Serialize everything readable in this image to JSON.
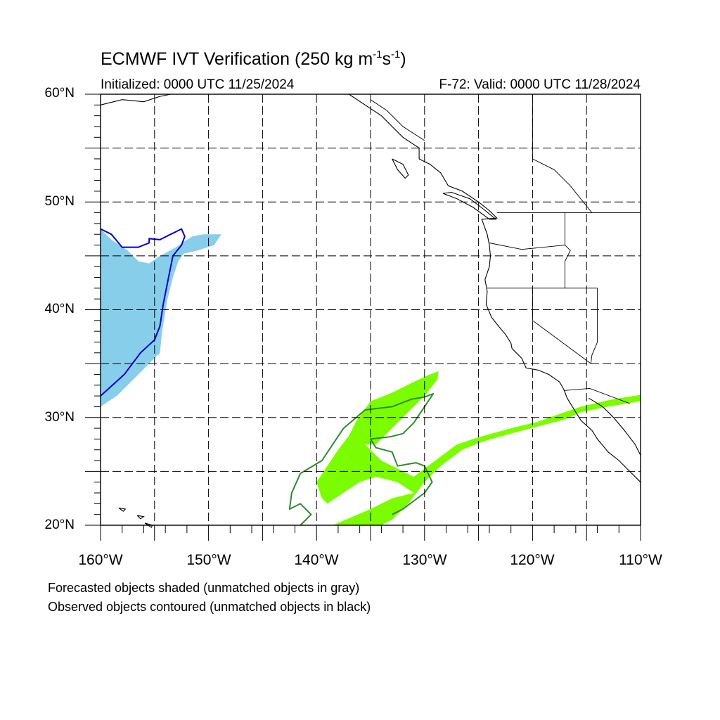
{
  "title": {
    "main": "ECMWF IVT Verification (250 kg m",
    "exp1": "-1",
    "mid": "s",
    "exp2": "-1",
    "end": ")"
  },
  "initialized": "Initialized: 0000 UTC 11/25/2024",
  "valid": "F-72: Valid: 0000 UTC 11/28/2024",
  "map": {
    "lon_range": [
      -160,
      -110
    ],
    "lat_range": [
      20,
      60
    ],
    "grid_interval_deg": 5,
    "grid_style": "dashed",
    "lat_labels": [
      "60°N",
      "50°N",
      "40°N",
      "30°N",
      "20°N"
    ],
    "lon_labels": [
      "160°W",
      "150°W",
      "140°W",
      "130°W",
      "120°W",
      "110°W"
    ],
    "colors": {
      "forecast_object_1": "#87ceeb",
      "observed_object_1": "#0000cd",
      "forecast_object_2": "#7cfc00",
      "observed_object_2": "#2e8b2e",
      "coastline": "#000000"
    },
    "objects": [
      {
        "name": "forecast-object-1",
        "kind": "forecast",
        "style": "shaded",
        "lonlat": [
          [
            -160,
            47.5
          ],
          [
            -159,
            46.5
          ],
          [
            -157.5,
            45.5
          ],
          [
            -156.5,
            44.5
          ],
          [
            -155.5,
            44.3
          ],
          [
            -154.5,
            45
          ],
          [
            -153,
            45.8
          ],
          [
            -152,
            46.5
          ],
          [
            -151.5,
            46.8
          ],
          [
            -150.5,
            47
          ],
          [
            -148.8,
            47
          ],
          [
            -149.5,
            46
          ],
          [
            -151,
            45.5
          ],
          [
            -152.3,
            45.2
          ],
          [
            -152.8,
            44.5
          ],
          [
            -153.3,
            43
          ],
          [
            -153.8,
            41
          ],
          [
            -154.3,
            38
          ],
          [
            -154.5,
            36
          ],
          [
            -155.5,
            35
          ],
          [
            -157,
            33.5
          ],
          [
            -158.5,
            32
          ],
          [
            -160,
            31
          ]
        ]
      },
      {
        "name": "observed-object-1",
        "kind": "observed",
        "style": "contour",
        "lonlat": [
          [
            -160,
            47.5
          ],
          [
            -159,
            47
          ],
          [
            -158,
            45.8
          ],
          [
            -156.5,
            45.8
          ],
          [
            -155.5,
            46.2
          ],
          [
            -155.5,
            46.6
          ],
          [
            -154.5,
            46.5
          ],
          [
            -153.5,
            47
          ],
          [
            -152.5,
            47.5
          ],
          [
            -152.2,
            46.8
          ],
          [
            -152.5,
            46
          ],
          [
            -153.3,
            45
          ],
          [
            -153.5,
            44
          ],
          [
            -153.8,
            42.5
          ],
          [
            -154.2,
            40.5
          ],
          [
            -154.5,
            38.5
          ],
          [
            -155,
            37.2
          ],
          [
            -156.3,
            36
          ],
          [
            -157.8,
            34
          ],
          [
            -160,
            32
          ]
        ]
      },
      {
        "name": "forecast-object-2",
        "kind": "forecast",
        "style": "shaded",
        "lonlat": [
          [
            -139.5,
            22.5
          ],
          [
            -140,
            24
          ],
          [
            -139,
            25.5
          ],
          [
            -138,
            27
          ],
          [
            -137,
            28.3
          ],
          [
            -136.3,
            29.7
          ],
          [
            -135,
            31.5
          ],
          [
            -133,
            32.3
          ],
          [
            -131,
            33.3
          ],
          [
            -129.5,
            34
          ],
          [
            -128.7,
            34.3
          ],
          [
            -128.8,
            33.5
          ],
          [
            -130,
            32
          ],
          [
            -131.5,
            30.5
          ],
          [
            -133,
            29
          ],
          [
            -134.5,
            27.5
          ],
          [
            -135.5,
            27.5
          ],
          [
            -134,
            26
          ],
          [
            -131,
            24.5
          ],
          [
            -129,
            26
          ],
          [
            -127,
            27.5
          ],
          [
            -125.5,
            28
          ],
          [
            -124.5,
            28.3
          ],
          [
            -122,
            29
          ],
          [
            -119.5,
            29.6
          ],
          [
            -117.3,
            30.4
          ],
          [
            -115.5,
            31
          ],
          [
            -113,
            31.6
          ],
          [
            -110,
            32.1
          ],
          [
            -110,
            31.5
          ],
          [
            -113,
            31
          ],
          [
            -115.5,
            30.5
          ],
          [
            -117,
            29.8
          ],
          [
            -119,
            29.3
          ],
          [
            -122,
            28.5
          ],
          [
            -124.5,
            27.8
          ],
          [
            -126.5,
            27
          ],
          [
            -128.5,
            25.5
          ],
          [
            -130,
            24
          ],
          [
            -131.5,
            22
          ],
          [
            -133,
            20.5
          ],
          [
            -134,
            20
          ],
          [
            -138.5,
            20
          ],
          [
            -135,
            21.5
          ],
          [
            -133,
            22.5
          ],
          [
            -131,
            23
          ],
          [
            -132.5,
            24
          ],
          [
            -134.5,
            24.5
          ],
          [
            -136,
            24
          ],
          [
            -137.5,
            23
          ],
          [
            -139,
            22
          ]
        ]
      },
      {
        "name": "observed-object-2",
        "kind": "observed",
        "style": "contour",
        "lonlat": [
          [
            -141.5,
            20
          ],
          [
            -140.5,
            21
          ],
          [
            -141.5,
            22
          ],
          [
            -142.5,
            21.5
          ],
          [
            -142.3,
            23
          ],
          [
            -141.5,
            24.8
          ],
          [
            -139.5,
            26
          ],
          [
            -137.5,
            29
          ],
          [
            -135.5,
            30.7
          ],
          [
            -133,
            31
          ],
          [
            -131.2,
            31.7
          ],
          [
            -130,
            31.9
          ],
          [
            -129.2,
            32.2
          ],
          [
            -130,
            31
          ],
          [
            -131,
            29.5
          ],
          [
            -132,
            28.5
          ],
          [
            -133.2,
            28.2
          ],
          [
            -135,
            28
          ],
          [
            -134.5,
            27.2
          ],
          [
            -133,
            26.8
          ],
          [
            -132.5,
            25.5
          ],
          [
            -130.8,
            25.8
          ],
          [
            -130,
            25.5
          ],
          [
            -129.3,
            24
          ],
          [
            -130,
            23
          ],
          [
            -132,
            21.5
          ],
          [
            -133,
            21
          ]
        ]
      }
    ],
    "coastlines": [
      {
        "name": "north-america-west-coast",
        "lonlat": [
          [
            -137,
            60
          ],
          [
            -135.5,
            59
          ],
          [
            -134,
            58
          ],
          [
            -133,
            57
          ],
          [
            -132,
            56
          ],
          [
            -130.5,
            55
          ],
          [
            -130.5,
            54
          ],
          [
            -129.5,
            53.5
          ],
          [
            -128.5,
            52.7
          ],
          [
            -127.8,
            51.5
          ],
          [
            -126.5,
            51
          ],
          [
            -125,
            50
          ],
          [
            -124,
            49.2
          ],
          [
            -123.3,
            48.5
          ],
          [
            -124.7,
            48.4
          ],
          [
            -124.2,
            47
          ],
          [
            -124,
            46
          ],
          [
            -123.9,
            45
          ],
          [
            -124,
            44
          ],
          [
            -124.4,
            42.8
          ],
          [
            -124.2,
            41.7
          ],
          [
            -124.3,
            40.5
          ],
          [
            -123.8,
            39.3
          ],
          [
            -123,
            38.3
          ],
          [
            -122.5,
            37.7
          ],
          [
            -122,
            36.9
          ],
          [
            -121.9,
            36.4
          ],
          [
            -121,
            35.5
          ],
          [
            -120.6,
            34.6
          ],
          [
            -119.5,
            34.4
          ],
          [
            -118.5,
            34
          ],
          [
            -117.5,
            33.3
          ],
          [
            -117.1,
            32.6
          ],
          [
            -116.8,
            31.8
          ],
          [
            -116,
            30.5
          ],
          [
            -115.5,
            29.7
          ],
          [
            -114.5,
            28.8
          ],
          [
            -114,
            28
          ],
          [
            -113,
            26.8
          ],
          [
            -112,
            26
          ],
          [
            -111,
            25
          ],
          [
            -110,
            24
          ]
        ]
      },
      {
        "name": "alaska-coast",
        "lonlat": [
          [
            -160,
            59
          ],
          [
            -158,
            59.5
          ],
          [
            -156,
            59.3
          ],
          [
            -154.5,
            59.8
          ],
          [
            -153.5,
            60
          ]
        ]
      },
      {
        "name": "vancouver-island",
        "lonlat": [
          [
            -128.3,
            50.8
          ],
          [
            -127,
            50.3
          ],
          [
            -125.5,
            49.5
          ],
          [
            -124,
            48.4
          ],
          [
            -123.4,
            48.4
          ],
          [
            -124.5,
            49.3
          ],
          [
            -125.8,
            50.3
          ],
          [
            -127.5,
            50.9
          ],
          [
            -128.3,
            50.8
          ]
        ]
      },
      {
        "name": "haida-gwaii",
        "lonlat": [
          [
            -133,
            54
          ],
          [
            -132,
            53.5
          ],
          [
            -131.5,
            52.5
          ],
          [
            -131.8,
            52.2
          ],
          [
            -132.5,
            53
          ],
          [
            -133,
            54
          ]
        ]
      },
      {
        "name": "gulf-of-california-east",
        "lonlat": [
          [
            -114.8,
            31.8
          ],
          [
            -113.5,
            31
          ],
          [
            -112.5,
            30
          ],
          [
            -111.5,
            28.8
          ],
          [
            -110.5,
            27.5
          ],
          [
            -110,
            26.5
          ]
        ]
      },
      {
        "name": "hawaii-big-island",
        "lonlat": [
          [
            -155.9,
            20.2
          ],
          [
            -155.2,
            20
          ],
          [
            -155.3,
            19.8
          ],
          [
            -155.9,
            20.2
          ]
        ]
      },
      {
        "name": "hawaii-maui",
        "lonlat": [
          [
            -156.6,
            20.9
          ],
          [
            -156,
            20.8
          ],
          [
            -156.3,
            20.6
          ],
          [
            -156.6,
            20.9
          ]
        ]
      },
      {
        "name": "hawaii-oahu",
        "lonlat": [
          [
            -158.3,
            21.6
          ],
          [
            -157.7,
            21.5
          ],
          [
            -157.9,
            21.3
          ],
          [
            -158.3,
            21.6
          ]
        ]
      }
    ],
    "boundaries": [
      {
        "name": "us-canada-border",
        "lonlat": [
          [
            -123.3,
            49
          ],
          [
            -110,
            49
          ]
        ]
      },
      {
        "name": "bc-alaska-border",
        "lonlat": [
          [
            -135,
            59.5
          ],
          [
            -133.5,
            58.5
          ],
          [
            -132,
            57
          ],
          [
            -130,
            55.7
          ]
        ]
      },
      {
        "name": "wa-or-border",
        "lonlat": [
          [
            -124,
            46.2
          ],
          [
            -121,
            45.6
          ],
          [
            -117,
            46
          ]
        ]
      },
      {
        "name": "id-west-border",
        "lonlat": [
          [
            -117,
            49
          ],
          [
            -117,
            46
          ],
          [
            -116.5,
            45.5
          ],
          [
            -117,
            44.5
          ],
          [
            -117,
            42
          ]
        ]
      },
      {
        "name": "ca-or-border",
        "lonlat": [
          [
            -124.2,
            42
          ],
          [
            -114,
            42
          ]
        ]
      },
      {
        "name": "ca-nv-border",
        "lonlat": [
          [
            -120,
            42
          ],
          [
            -120,
            39
          ],
          [
            -114.6,
            35
          ]
        ]
      },
      {
        "name": "nv-ut-border",
        "lonlat": [
          [
            -114,
            42
          ],
          [
            -114,
            37
          ],
          [
            -114.5,
            35.8
          ],
          [
            -114.6,
            35
          ]
        ]
      },
      {
        "name": "us-mexico-border",
        "lonlat": [
          [
            -117.1,
            32.5
          ],
          [
            -114.7,
            32.7
          ],
          [
            -111,
            31.3
          ]
        ]
      },
      {
        "name": "bc-alberta-border",
        "lonlat": [
          [
            -120,
            60
          ],
          [
            -120,
            54
          ],
          [
            -118,
            53
          ],
          [
            -116.5,
            51.5
          ],
          [
            -114.5,
            49
          ]
        ]
      }
    ]
  },
  "legend": [
    "Forecasted objects shaded (unmatched objects in gray)",
    "Observed objects contoured (unmatched objects in black)"
  ]
}
